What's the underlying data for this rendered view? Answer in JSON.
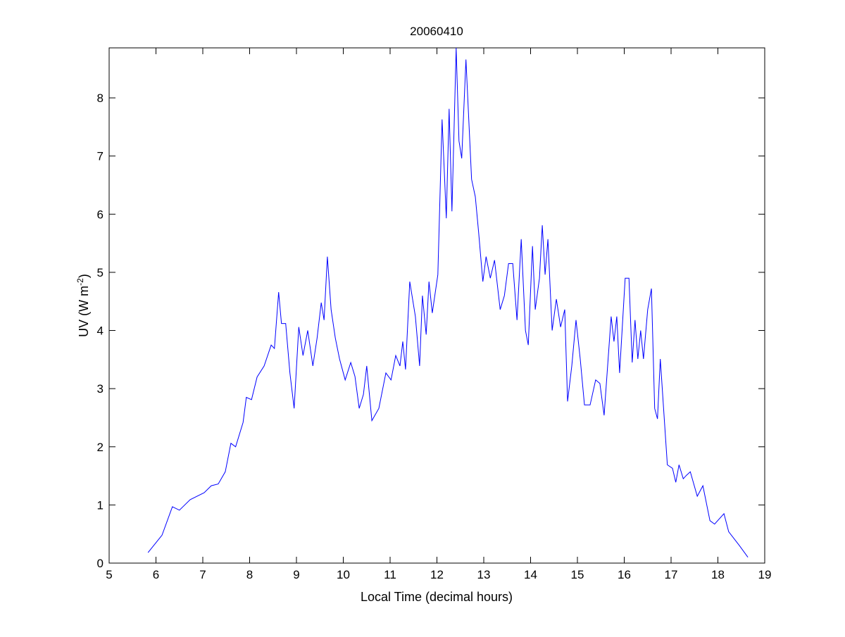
{
  "chart_data": {
    "type": "line",
    "title": "20060410",
    "xlabel": "Local Time (decimal hours)",
    "ylabel": "UV (W m",
    "ylabel_superscript": "-2",
    "ylabel_suffix": ")",
    "xlim": [
      5,
      19
    ],
    "ylim": [
      0,
      8.86
    ],
    "xticks": [
      5,
      6,
      7,
      8,
      9,
      10,
      11,
      12,
      13,
      14,
      15,
      16,
      17,
      18,
      19
    ],
    "yticks": [
      0,
      1,
      2,
      3,
      4,
      5,
      6,
      7,
      8
    ],
    "grid": false,
    "series": [
      {
        "name": "UV",
        "color": "#0000ff",
        "x": [
          5.83,
          6.13,
          6.35,
          6.5,
          6.73,
          7.03,
          7.18,
          7.33,
          7.48,
          7.6,
          7.7,
          7.86,
          7.93,
          8.04,
          8.16,
          8.31,
          8.46,
          8.53,
          8.62,
          8.68,
          8.77,
          8.86,
          8.95,
          9.05,
          9.14,
          9.24,
          9.35,
          9.44,
          9.53,
          9.59,
          9.66,
          9.74,
          9.83,
          9.92,
          10.04,
          10.16,
          10.25,
          10.34,
          10.43,
          10.5,
          10.61,
          10.76,
          10.91,
          11.02,
          11.12,
          11.21,
          11.27,
          11.33,
          11.42,
          11.54,
          11.63,
          11.69,
          11.77,
          11.83,
          11.9,
          12.02,
          12.11,
          12.2,
          12.26,
          12.32,
          12.41,
          12.47,
          12.53,
          12.62,
          12.74,
          12.82,
          12.89,
          12.98,
          13.05,
          13.14,
          13.23,
          13.35,
          13.44,
          13.53,
          13.62,
          13.71,
          13.8,
          13.89,
          13.95,
          14.04,
          14.1,
          14.19,
          14.25,
          14.31,
          14.37,
          14.46,
          14.55,
          14.64,
          14.73,
          14.79,
          14.88,
          14.97,
          15.06,
          15.15,
          15.27,
          15.39,
          15.48,
          15.57,
          15.72,
          15.78,
          15.84,
          15.9,
          16.02,
          16.1,
          16.17,
          16.23,
          16.29,
          16.35,
          16.41,
          16.5,
          16.58,
          16.65,
          16.71,
          16.77,
          16.83,
          16.92,
          17.03,
          17.1,
          17.17,
          17.26,
          17.33,
          17.41,
          17.56,
          17.68,
          17.83,
          17.93,
          18.13,
          18.23,
          18.46,
          18.64
        ],
        "y": [
          0.18,
          0.48,
          0.97,
          0.91,
          1.09,
          1.21,
          1.33,
          1.36,
          1.57,
          2.06,
          2.0,
          2.42,
          2.85,
          2.81,
          3.2,
          3.39,
          3.75,
          3.69,
          4.66,
          4.12,
          4.12,
          3.27,
          2.66,
          4.06,
          3.57,
          4.0,
          3.39,
          3.87,
          4.48,
          4.18,
          5.27,
          4.36,
          3.87,
          3.51,
          3.15,
          3.45,
          3.21,
          2.66,
          2.9,
          3.39,
          2.45,
          2.66,
          3.27,
          3.15,
          3.57,
          3.39,
          3.81,
          3.33,
          4.84,
          4.24,
          3.39,
          4.6,
          3.93,
          4.84,
          4.3,
          4.96,
          7.63,
          5.93,
          7.81,
          6.05,
          8.86,
          7.26,
          6.96,
          8.66,
          6.6,
          6.3,
          5.69,
          4.84,
          5.27,
          4.9,
          5.21,
          4.36,
          4.6,
          5.15,
          5.15,
          4.18,
          5.57,
          4.0,
          3.75,
          5.45,
          4.36,
          4.9,
          5.81,
          4.96,
          5.57,
          4.0,
          4.54,
          4.06,
          4.36,
          2.78,
          3.39,
          4.18,
          3.51,
          2.72,
          2.72,
          3.15,
          3.09,
          2.54,
          4.24,
          3.81,
          4.24,
          3.27,
          4.9,
          4.9,
          3.45,
          4.18,
          3.51,
          4.0,
          3.51,
          4.36,
          4.72,
          2.66,
          2.48,
          3.51,
          2.78,
          1.69,
          1.63,
          1.39,
          1.69,
          1.45,
          1.51,
          1.57,
          1.15,
          1.33,
          0.73,
          0.67,
          0.85,
          0.54,
          0.3,
          0.1
        ]
      }
    ]
  }
}
